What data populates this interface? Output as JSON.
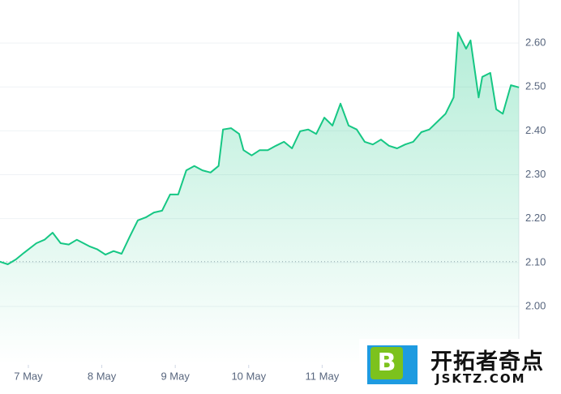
{
  "chart_data": {
    "type": "line",
    "x": [
      6.61,
      6.72,
      6.83,
      6.94,
      7.11,
      7.22,
      7.33,
      7.44,
      7.55,
      7.66,
      7.83,
      7.94,
      8.05,
      8.16,
      8.27,
      8.38,
      8.49,
      8.6,
      8.71,
      8.82,
      8.93,
      9.04,
      9.15,
      9.26,
      9.37,
      9.48,
      9.59,
      9.65,
      9.76,
      9.87,
      9.93,
      10.04,
      10.15,
      10.26,
      10.37,
      10.48,
      10.59,
      10.7,
      10.81,
      10.92,
      11.03,
      11.14,
      11.25,
      11.36,
      11.47,
      11.58,
      11.69,
      11.8,
      11.91,
      12.02,
      12.13,
      12.24,
      12.35,
      12.46,
      12.57,
      12.68,
      12.79,
      12.85,
      12.96,
      13.02,
      13.13,
      13.18,
      13.29,
      13.37,
      13.46,
      13.57,
      13.68
    ],
    "series": [
      {
        "color": "#16c784",
        "values": [
          2.102,
          2.096,
          2.107,
          2.122,
          2.144,
          2.152,
          2.168,
          2.144,
          2.141,
          2.152,
          2.137,
          2.13,
          2.118,
          2.126,
          2.12,
          2.159,
          2.196,
          2.203,
          2.214,
          2.218,
          2.255,
          2.255,
          2.31,
          2.32,
          2.31,
          2.305,
          2.32,
          2.403,
          2.406,
          2.393,
          2.356,
          2.344,
          2.356,
          2.356,
          2.366,
          2.375,
          2.36,
          2.399,
          2.403,
          2.393,
          2.43,
          2.412,
          2.462,
          2.412,
          2.403,
          2.375,
          2.369,
          2.38,
          2.366,
          2.36,
          2.369,
          2.375,
          2.397,
          2.403,
          2.421,
          2.439,
          2.476,
          2.624,
          2.587,
          2.606,
          2.476,
          2.523,
          2.532,
          2.449,
          2.439,
          2.504,
          2.499
        ]
      }
    ],
    "xlim": [
      6.614,
      13.678
    ],
    "xticks": [
      {
        "value": 7,
        "label": "7 May"
      },
      {
        "value": 8,
        "label": "8 May"
      },
      {
        "value": 9,
        "label": "9 May"
      },
      {
        "value": 10,
        "label": "10 May"
      },
      {
        "value": 11,
        "label": "11 May"
      }
    ],
    "ylim": [
      1.867,
      2.698
    ],
    "yticks": [
      {
        "value": 2.0,
        "label": "2.00"
      },
      {
        "value": 2.1,
        "label": "2.10"
      },
      {
        "value": 2.2,
        "label": "2.20"
      },
      {
        "value": 2.3,
        "label": "2.30"
      },
      {
        "value": 2.4,
        "label": "2.40"
      },
      {
        "value": 2.5,
        "label": "2.50"
      },
      {
        "value": 2.6,
        "label": "2.60"
      }
    ],
    "baseline": 2.102,
    "grid": true
  },
  "watermark": {
    "icon": "B",
    "title": "开拓者奇点",
    "subtitle": "JSKTZ.COM"
  }
}
